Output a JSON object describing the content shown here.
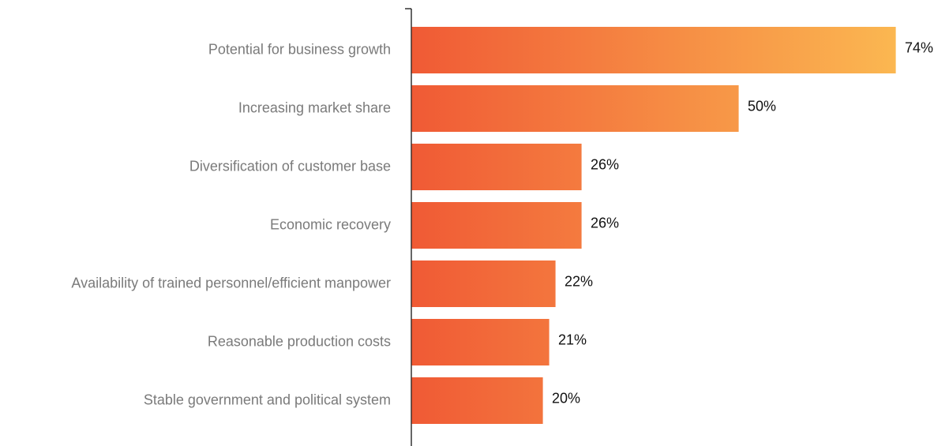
{
  "chart_data": {
    "type": "bar",
    "orientation": "horizontal",
    "categories": [
      "Potential for business growth",
      "Increasing market share",
      "Diversification of customer base",
      "Economic recovery",
      "Availability of trained personnel/efficient manpower",
      "Reasonable production costs",
      "Stable government and political system"
    ],
    "values": [
      74,
      50,
      26,
      26,
      22,
      21,
      20
    ],
    "value_labels": [
      "74%",
      "50%",
      "26%",
      "26%",
      "22%",
      "21%",
      "20%"
    ],
    "unit": "%",
    "xlim": [
      0,
      74
    ],
    "grid": false,
    "legend": "none",
    "title": "",
    "xlabel": "",
    "ylabel": ""
  },
  "colors": {
    "bar_gradient_start": "#f05a35",
    "bar_gradient_end": "#fbb751",
    "axis": "#000000",
    "category_text": "#7a7a7a",
    "value_text": "#111111"
  }
}
